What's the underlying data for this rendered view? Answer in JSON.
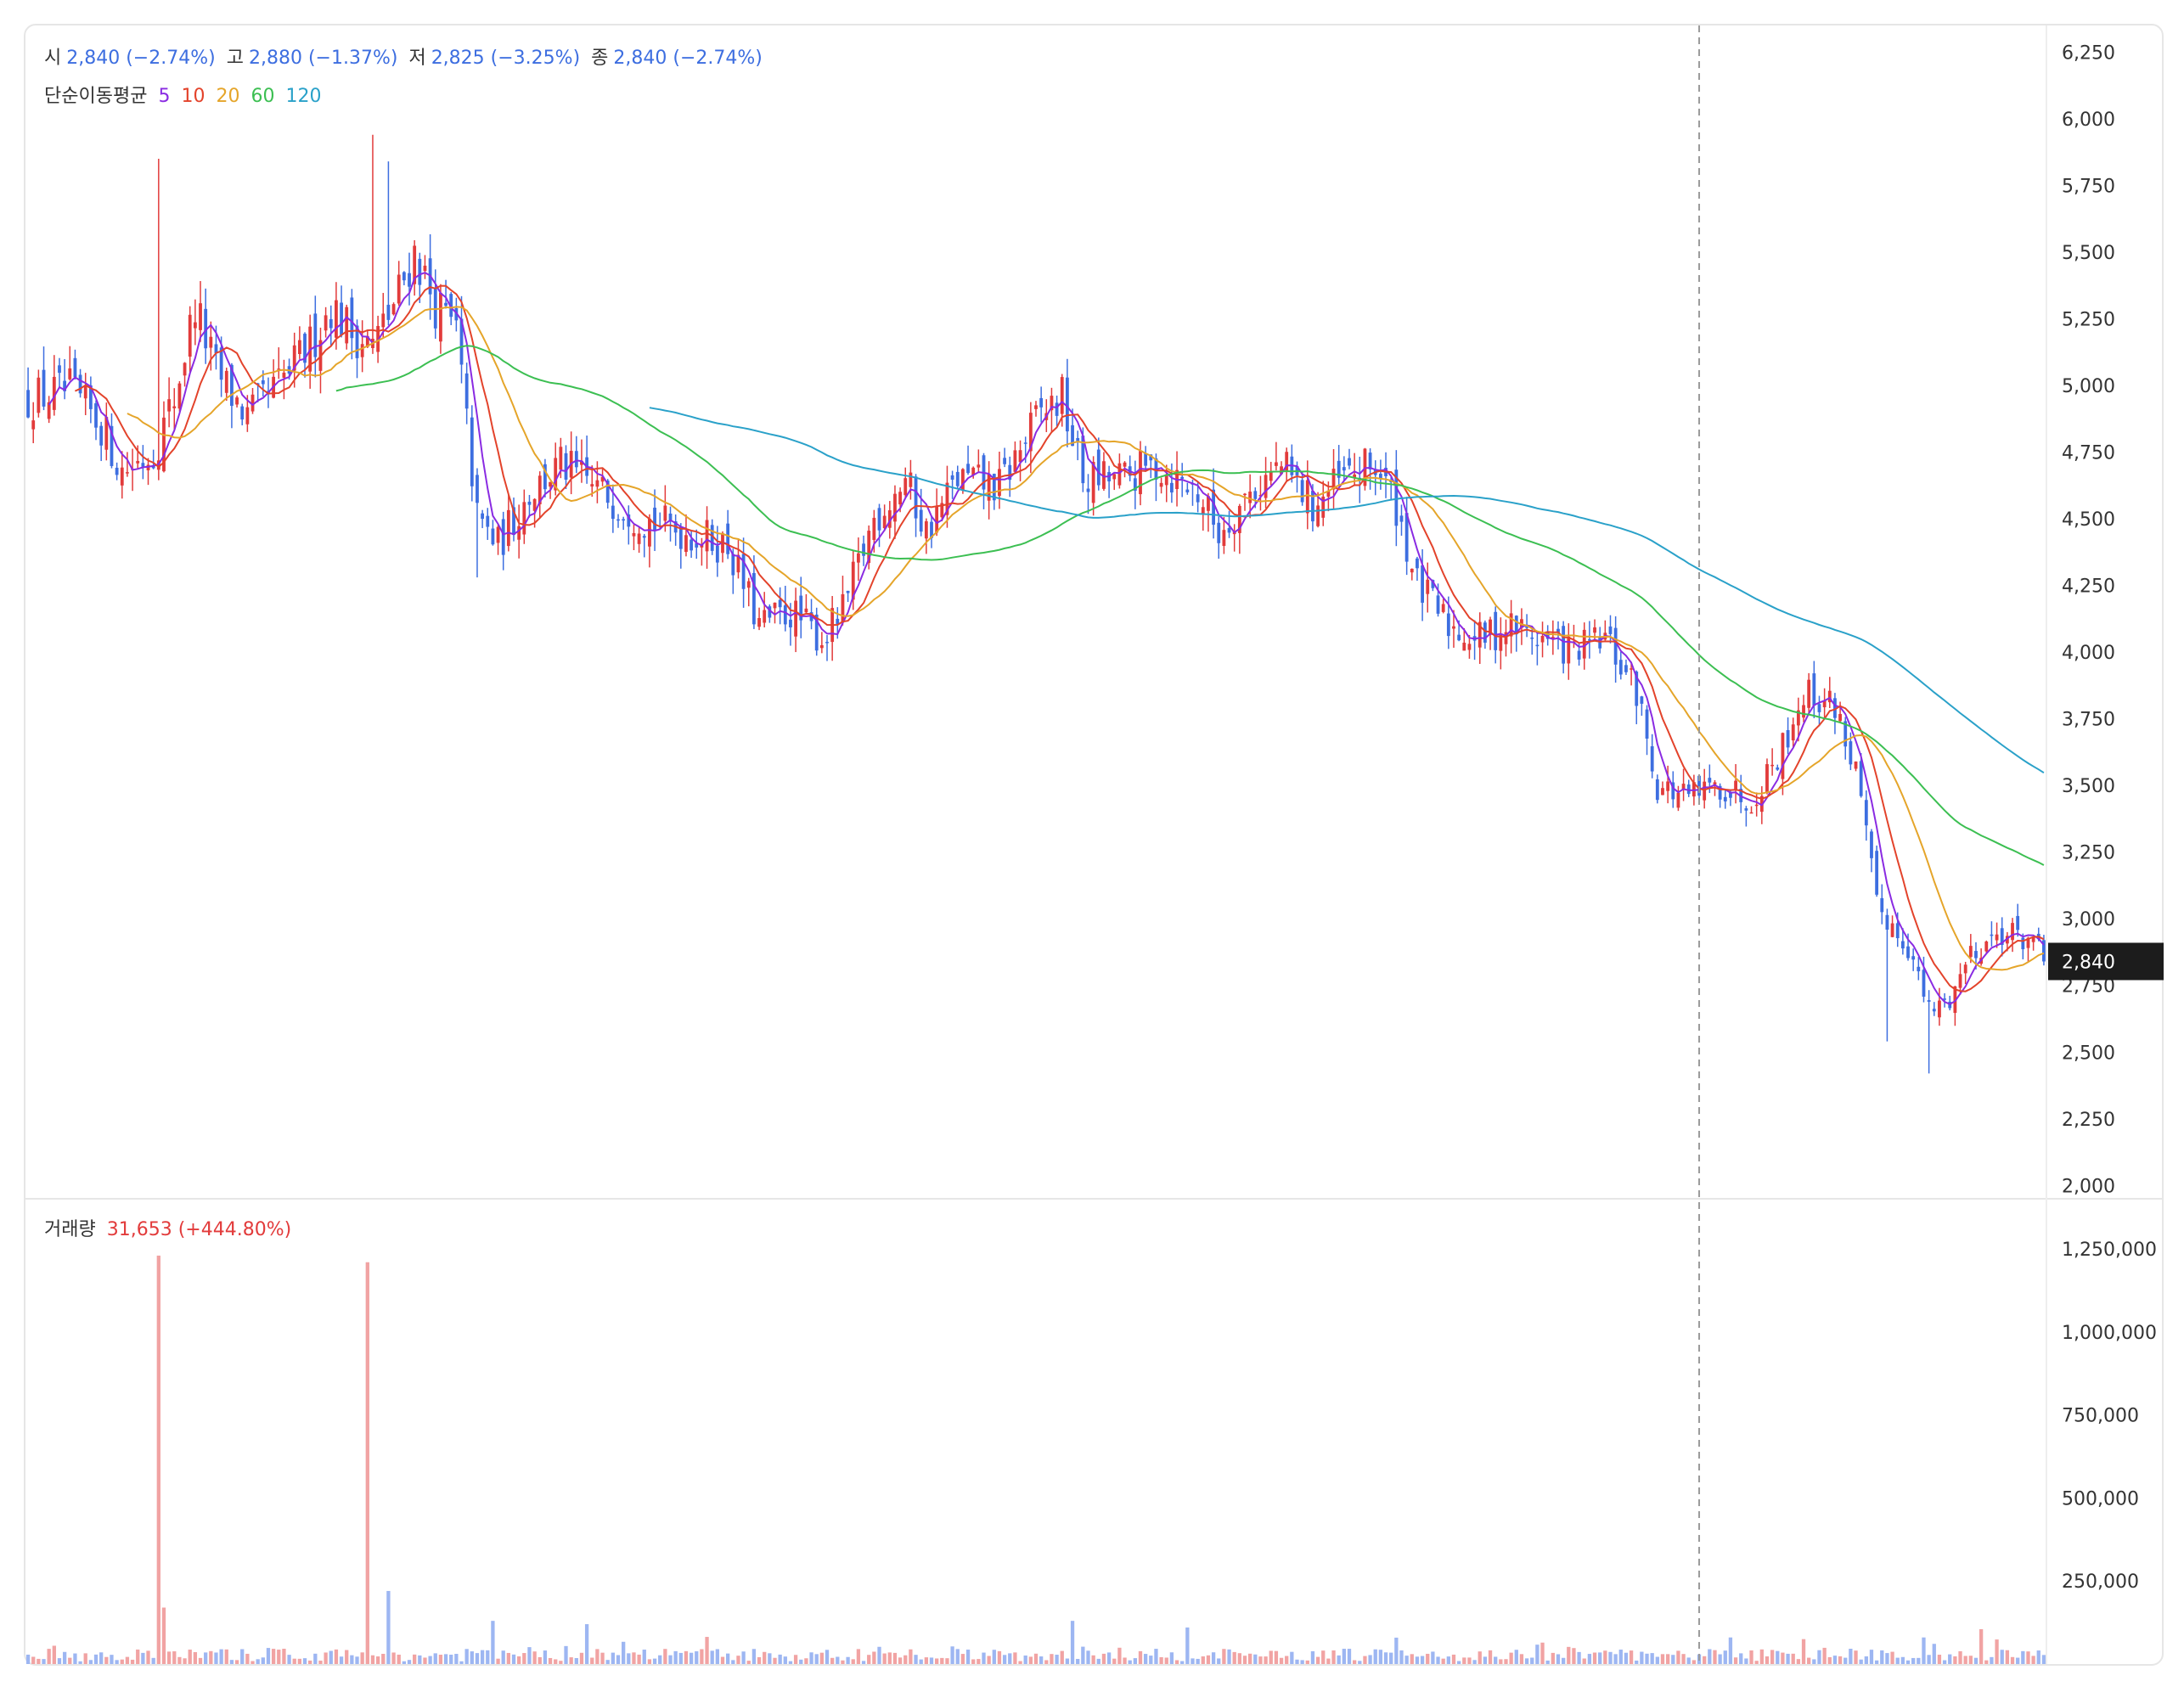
{
  "ohlc_header": {
    "open_label": "시",
    "open_value": "2,840 (−2.74%)",
    "high_label": "고",
    "high_value": "2,880 (−1.37%)",
    "low_label": "저",
    "low_value": "2,825 (−3.25%)",
    "close_label": "종",
    "close_value": "2,840 (−2.74%)"
  },
  "ma_legend": {
    "label": "단순이동평균",
    "periods": [
      "5",
      "10",
      "20",
      "60",
      "120"
    ]
  },
  "volume_legend": {
    "label": "거래량",
    "value": "31,653 (+444.80%)"
  },
  "current_price_tag": "2,840",
  "colors": {
    "up": "#e23b3b",
    "down": "#3d6ee0",
    "ma5": "#8a2be2",
    "ma10": "#e3432b",
    "ma20": "#e5a52a",
    "ma60": "#3cbf52",
    "ma120": "#2aa1c9"
  },
  "chart_data": [
    {
      "type": "candlestick",
      "title": "",
      "y_axis_ticks": [
        "6,250",
        "6,000",
        "5,750",
        "5,500",
        "5,250",
        "5,000",
        "4,750",
        "4,500",
        "4,250",
        "4,000",
        "3,750",
        "3,500",
        "3,250",
        "3,000",
        "2,750",
        "2,500",
        "2,250",
        "2,000"
      ],
      "ylim": [
        1950,
        6350
      ],
      "series_close_keypoints": [
        {
          "i": 0,
          "c": 4950
        },
        {
          "i": 8,
          "c": 4980
        },
        {
          "i": 14,
          "c": 4850
        },
        {
          "i": 18,
          "c": 4680
        },
        {
          "i": 24,
          "c": 4750
        },
        {
          "i": 28,
          "c": 4950
        },
        {
          "i": 32,
          "c": 5300
        },
        {
          "i": 36,
          "c": 5050
        },
        {
          "i": 42,
          "c": 4880
        },
        {
          "i": 48,
          "c": 5000
        },
        {
          "i": 54,
          "c": 5150
        },
        {
          "i": 58,
          "c": 5300
        },
        {
          "i": 62,
          "c": 5200
        },
        {
          "i": 66,
          "c": 5150
        },
        {
          "i": 70,
          "c": 5300
        },
        {
          "i": 74,
          "c": 5500
        },
        {
          "i": 78,
          "c": 5300
        },
        {
          "i": 82,
          "c": 5200
        },
        {
          "i": 86,
          "c": 4500
        },
        {
          "i": 90,
          "c": 4400
        },
        {
          "i": 96,
          "c": 4600
        },
        {
          "i": 102,
          "c": 4700
        },
        {
          "i": 110,
          "c": 4600
        },
        {
          "i": 118,
          "c": 4500
        },
        {
          "i": 126,
          "c": 4450
        },
        {
          "i": 134,
          "c": 4400
        },
        {
          "i": 140,
          "c": 4100
        },
        {
          "i": 146,
          "c": 4150
        },
        {
          "i": 152,
          "c": 4050
        },
        {
          "i": 156,
          "c": 4150
        },
        {
          "i": 162,
          "c": 4500
        },
        {
          "i": 168,
          "c": 4650
        },
        {
          "i": 172,
          "c": 4450
        },
        {
          "i": 178,
          "c": 4650
        },
        {
          "i": 186,
          "c": 4620
        },
        {
          "i": 194,
          "c": 4900
        },
        {
          "i": 198,
          "c": 4950
        },
        {
          "i": 202,
          "c": 4650
        },
        {
          "i": 210,
          "c": 4650
        },
        {
          "i": 216,
          "c": 4700
        },
        {
          "i": 224,
          "c": 4600
        },
        {
          "i": 228,
          "c": 4450
        },
        {
          "i": 234,
          "c": 4600
        },
        {
          "i": 240,
          "c": 4700
        },
        {
          "i": 246,
          "c": 4550
        },
        {
          "i": 252,
          "c": 4650
        },
        {
          "i": 258,
          "c": 4700
        },
        {
          "i": 262,
          "c": 4550
        },
        {
          "i": 266,
          "c": 4250
        },
        {
          "i": 272,
          "c": 4100
        },
        {
          "i": 278,
          "c": 4050
        },
        {
          "i": 284,
          "c": 4100
        },
        {
          "i": 290,
          "c": 4050
        },
        {
          "i": 296,
          "c": 4000
        },
        {
          "i": 302,
          "c": 4050
        },
        {
          "i": 308,
          "c": 3850
        },
        {
          "i": 312,
          "c": 3500
        },
        {
          "i": 318,
          "c": 3450
        },
        {
          "i": 324,
          "c": 3500
        },
        {
          "i": 330,
          "c": 3450
        },
        {
          "i": 336,
          "c": 3650
        },
        {
          "i": 340,
          "c": 3850
        },
        {
          "i": 346,
          "c": 3800
        },
        {
          "i": 350,
          "c": 3550
        },
        {
          "i": 354,
          "c": 3050
        },
        {
          "i": 360,
          "c": 2900
        },
        {
          "i": 364,
          "c": 2650
        },
        {
          "i": 368,
          "c": 2700
        },
        {
          "i": 372,
          "c": 2880
        },
        {
          "i": 378,
          "c": 2950
        },
        {
          "i": 384,
          "c": 2920
        },
        {
          "i": 386,
          "c": 2840
        }
      ]
    },
    {
      "type": "bar",
      "title": "",
      "y_axis_ticks": [
        "1,250,000",
        "1,000,000",
        "750,000",
        "500,000",
        "250,000"
      ],
      "ylim": [
        0,
        1350000
      ],
      "spikes": [
        {
          "i": 25,
          "volume": 1230000
        },
        {
          "i": 26,
          "volume": 170000
        },
        {
          "i": 65,
          "volume": 1210000
        },
        {
          "i": 69,
          "volume": 220000
        },
        {
          "i": 200,
          "volume": 130000
        },
        {
          "i": 222,
          "volume": 110000
        },
        {
          "i": 89,
          "volume": 130000
        },
        {
          "i": 107,
          "volume": 120000
        },
        {
          "i": 374,
          "volume": 105000
        },
        {
          "i": 340,
          "volume": 75000
        },
        {
          "i": 326,
          "volume": 80000
        }
      ]
    }
  ]
}
